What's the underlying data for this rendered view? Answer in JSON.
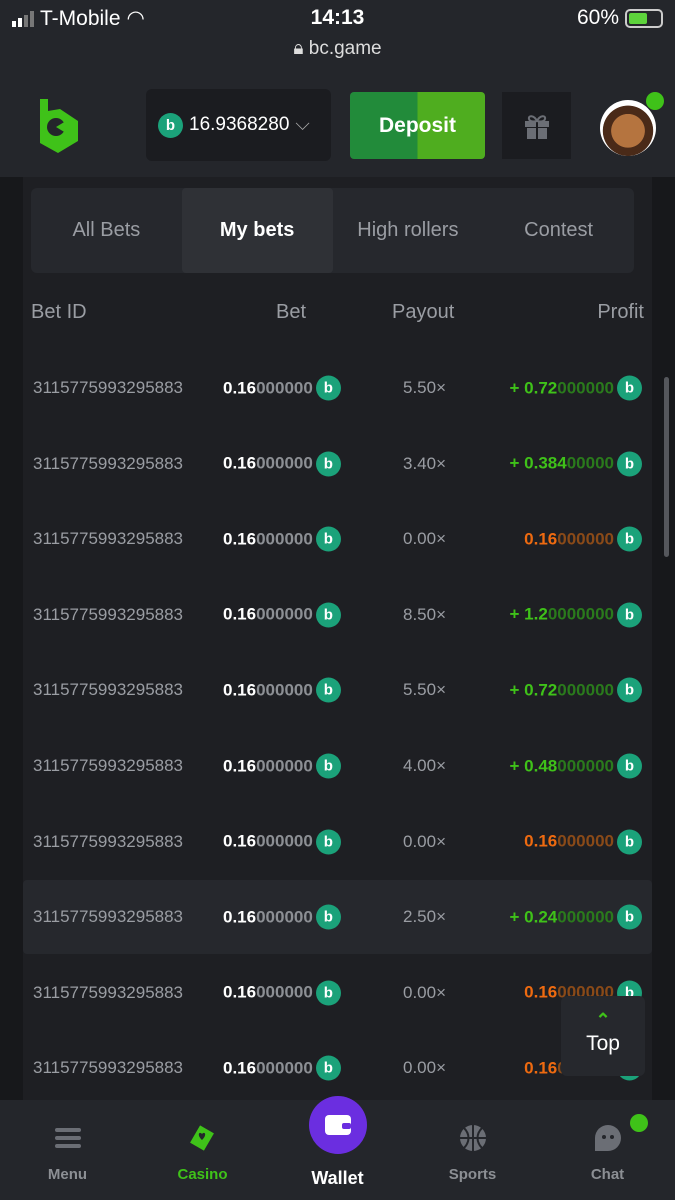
{
  "status": {
    "carrier": "T-Mobile",
    "time": "14:13",
    "url": "bc.game",
    "battery": "60%",
    "battery_level": 0.6
  },
  "header": {
    "balance": "16.9368280",
    "deposit": "Deposit"
  },
  "tabs": [
    "All Bets",
    "My bets",
    "High rollers",
    "Contest"
  ],
  "active_tab": 1,
  "columns": {
    "bet_id": "Bet ID",
    "bet": "Bet",
    "payout": "Payout",
    "profit": "Profit"
  },
  "rows": [
    {
      "id": "3115775993295883",
      "bet_s": "0.16",
      "bet_w": "000000",
      "payout": "5.50×",
      "result": "win",
      "profit_s": "+ 0.72",
      "profit_w": "000000"
    },
    {
      "id": "3115775993295883",
      "bet_s": "0.16",
      "bet_w": "000000",
      "payout": "3.40×",
      "result": "win",
      "profit_s": "+ 0.384",
      "profit_w": "00000"
    },
    {
      "id": "3115775993295883",
      "bet_s": "0.16",
      "bet_w": "000000",
      "payout": "0.00×",
      "result": "loss",
      "profit_s": "0.16",
      "profit_w": "000000"
    },
    {
      "id": "3115775993295883",
      "bet_s": "0.16",
      "bet_w": "000000",
      "payout": "8.50×",
      "result": "win",
      "profit_s": "+ 1.2",
      "profit_w": "0000000"
    },
    {
      "id": "3115775993295883",
      "bet_s": "0.16",
      "bet_w": "000000",
      "payout": "5.50×",
      "result": "win",
      "profit_s": "+ 0.72",
      "profit_w": "000000"
    },
    {
      "id": "3115775993295883",
      "bet_s": "0.16",
      "bet_w": "000000",
      "payout": "4.00×",
      "result": "win",
      "profit_s": "+ 0.48",
      "profit_w": "000000"
    },
    {
      "id": "3115775993295883",
      "bet_s": "0.16",
      "bet_w": "000000",
      "payout": "0.00×",
      "result": "loss",
      "profit_s": "0.16",
      "profit_w": "000000"
    },
    {
      "id": "3115775993295883",
      "bet_s": "0.16",
      "bet_w": "000000",
      "payout": "2.50×",
      "result": "win",
      "profit_s": "+ 0.24",
      "profit_w": "000000"
    },
    {
      "id": "3115775993295883",
      "bet_s": "0.16",
      "bet_w": "000000",
      "payout": "0.00×",
      "result": "loss",
      "profit_s": "0.16",
      "profit_w": "000000"
    },
    {
      "id": "3115775993295883",
      "bet_s": "0.16",
      "bet_w": "000000",
      "payout": "0.00×",
      "result": "loss",
      "profit_s": "0.16",
      "profit_w": "000000"
    }
  ],
  "highlighted_row": 7,
  "top_button": "Top",
  "nav": {
    "menu": "Menu",
    "casino": "Casino",
    "wallet": "Wallet",
    "sports": "Sports",
    "chat": "Chat"
  },
  "colors": {
    "accent": "#3fc219",
    "loss": "#ee6a10",
    "coin": "#1ba27a",
    "wallet": "#6b2ee0"
  }
}
